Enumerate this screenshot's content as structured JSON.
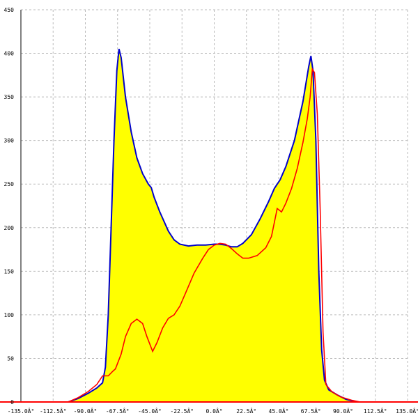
{
  "chart_data": {
    "type": "area",
    "title": "",
    "xlabel": "",
    "ylabel": "",
    "xlim": [
      -135,
      135
    ],
    "ylim": [
      0,
      450
    ],
    "grid": true,
    "x_ticks": [
      -135,
      -112.5,
      -90,
      -67.5,
      -45,
      -22.5,
      0,
      22.5,
      45,
      67.5,
      90,
      112.5,
      135
    ],
    "x_tick_labels": [
      "-135.0Â°",
      "-112.5Â°",
      "-90.0Â°",
      "-67.5Â°",
      "-45.0Â°",
      "-22.5Â°",
      "0.0Â°",
      "22.5Â°",
      "45.0Â°",
      "67.5Â°",
      "90.0Â°",
      "112.5Â°",
      "135.0Â°"
    ],
    "y_ticks": [
      0,
      50,
      100,
      150,
      200,
      250,
      300,
      350,
      400,
      450
    ],
    "y_tick_labels": [
      "0",
      "50",
      "100",
      "150",
      "200",
      "250",
      "300",
      "350",
      "400",
      "450"
    ],
    "series": [
      {
        "color": "#0000cc",
        "fill": "#ffff00",
        "points": [
          [
            -102,
            0
          ],
          [
            -95,
            4
          ],
          [
            -88,
            10
          ],
          [
            -82,
            16
          ],
          [
            -78,
            22
          ],
          [
            -76,
            40
          ],
          [
            -74,
            100
          ],
          [
            -72,
            200
          ],
          [
            -70,
            300
          ],
          [
            -68,
            380
          ],
          [
            -66.5,
            405
          ],
          [
            -65,
            395
          ],
          [
            -62,
            350
          ],
          [
            -58,
            310
          ],
          [
            -54,
            280
          ],
          [
            -50,
            262
          ],
          [
            -46,
            250
          ],
          [
            -44,
            246
          ],
          [
            -42,
            235
          ],
          [
            -38,
            218
          ],
          [
            -32,
            196
          ],
          [
            -28,
            186
          ],
          [
            -24,
            181
          ],
          [
            -18,
            179
          ],
          [
            -12,
            180
          ],
          [
            -6,
            180
          ],
          [
            0,
            181
          ],
          [
            4,
            181
          ],
          [
            8,
            180
          ],
          [
            12,
            178
          ],
          [
            16,
            178
          ],
          [
            20,
            182
          ],
          [
            26,
            192
          ],
          [
            32,
            210
          ],
          [
            38,
            230
          ],
          [
            42,
            245
          ],
          [
            46,
            255
          ],
          [
            50,
            270
          ],
          [
            56,
            300
          ],
          [
            62,
            345
          ],
          [
            66,
            385
          ],
          [
            67.5,
            397
          ],
          [
            69,
            380
          ],
          [
            71,
            300
          ],
          [
            73,
            150
          ],
          [
            75,
            60
          ],
          [
            77,
            25
          ],
          [
            80,
            14
          ],
          [
            86,
            8
          ],
          [
            92,
            3
          ],
          [
            100,
            0
          ]
        ]
      },
      {
        "color": "#ff0000",
        "points": [
          [
            -102,
            0
          ],
          [
            -95,
            5
          ],
          [
            -88,
            12
          ],
          [
            -82,
            20
          ],
          [
            -78,
            30
          ],
          [
            -74,
            30
          ],
          [
            -71,
            35
          ],
          [
            -69,
            38
          ],
          [
            -65,
            55
          ],
          [
            -62,
            75
          ],
          [
            -58,
            90
          ],
          [
            -54,
            95
          ],
          [
            -50,
            90
          ],
          [
            -47,
            75
          ],
          [
            -43,
            58
          ],
          [
            -40,
            68
          ],
          [
            -36,
            85
          ],
          [
            -32,
            96
          ],
          [
            -28,
            100
          ],
          [
            -24,
            110
          ],
          [
            -20,
            125
          ],
          [
            -14,
            148
          ],
          [
            -8,
            165
          ],
          [
            -4,
            175
          ],
          [
            0,
            180
          ],
          [
            4,
            182
          ],
          [
            8,
            181
          ],
          [
            12,
            176
          ],
          [
            16,
            170
          ],
          [
            20,
            165
          ],
          [
            24,
            165
          ],
          [
            30,
            168
          ],
          [
            36,
            177
          ],
          [
            40,
            190
          ],
          [
            44,
            222
          ],
          [
            47,
            218
          ],
          [
            50,
            228
          ],
          [
            54,
            245
          ],
          [
            58,
            268
          ],
          [
            62,
            298
          ],
          [
            65,
            325
          ],
          [
            67,
            350
          ],
          [
            68.5,
            382
          ],
          [
            70,
            378
          ],
          [
            72,
            330
          ],
          [
            74,
            220
          ],
          [
            76,
            80
          ],
          [
            78,
            20
          ],
          [
            82,
            12
          ],
          [
            88,
            6
          ],
          [
            96,
            2
          ],
          [
            102,
            0
          ]
        ]
      }
    ]
  }
}
